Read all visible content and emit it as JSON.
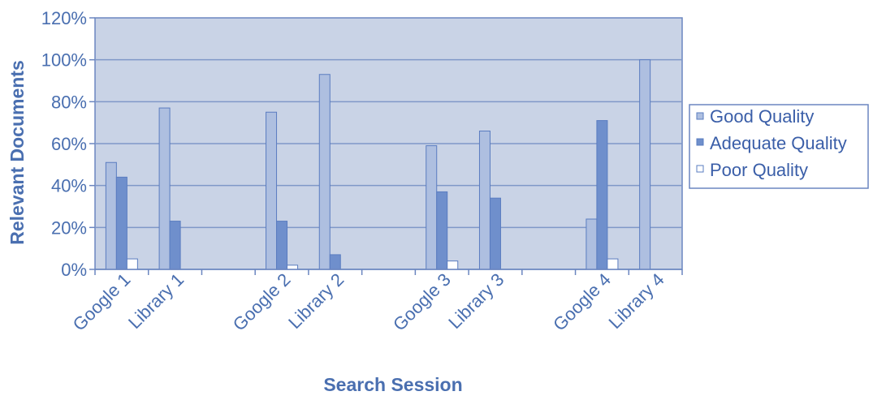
{
  "chart_data": {
    "type": "bar",
    "title": "",
    "xlabel": "Search Session",
    "ylabel": "Relevant Documents",
    "ylim": [
      0,
      120
    ],
    "yticks": [
      "0%",
      "20%",
      "40%",
      "60%",
      "80%",
      "100%",
      "120%"
    ],
    "grid": true,
    "legend_position": "right",
    "categories": [
      "Google 1",
      "Library 1",
      "",
      "Google 2",
      "Library 2",
      "",
      "Google 3",
      "Library 3",
      "",
      "Google 4",
      "Library 4"
    ],
    "series": [
      {
        "name": "Good Quality",
        "values": [
          51,
          77,
          null,
          75,
          93,
          null,
          59,
          66,
          null,
          24,
          100
        ]
      },
      {
        "name": "Adequate Quality",
        "values": [
          44,
          23,
          null,
          23,
          7,
          null,
          37,
          34,
          null,
          71,
          0
        ]
      },
      {
        "name": "Poor Quality",
        "values": [
          5,
          0,
          null,
          2,
          0,
          null,
          4,
          0,
          null,
          5,
          0
        ]
      }
    ],
    "colors": {
      "plot_background": "#c9d3e6",
      "good": "#aebfe0",
      "adequate": "#6f8fcc",
      "poor": "#ffffff",
      "bar_stroke": "#5a7cc0",
      "axis": "#6b86c0",
      "grid": "#7f97c8",
      "text": "#4a6fb0"
    }
  }
}
